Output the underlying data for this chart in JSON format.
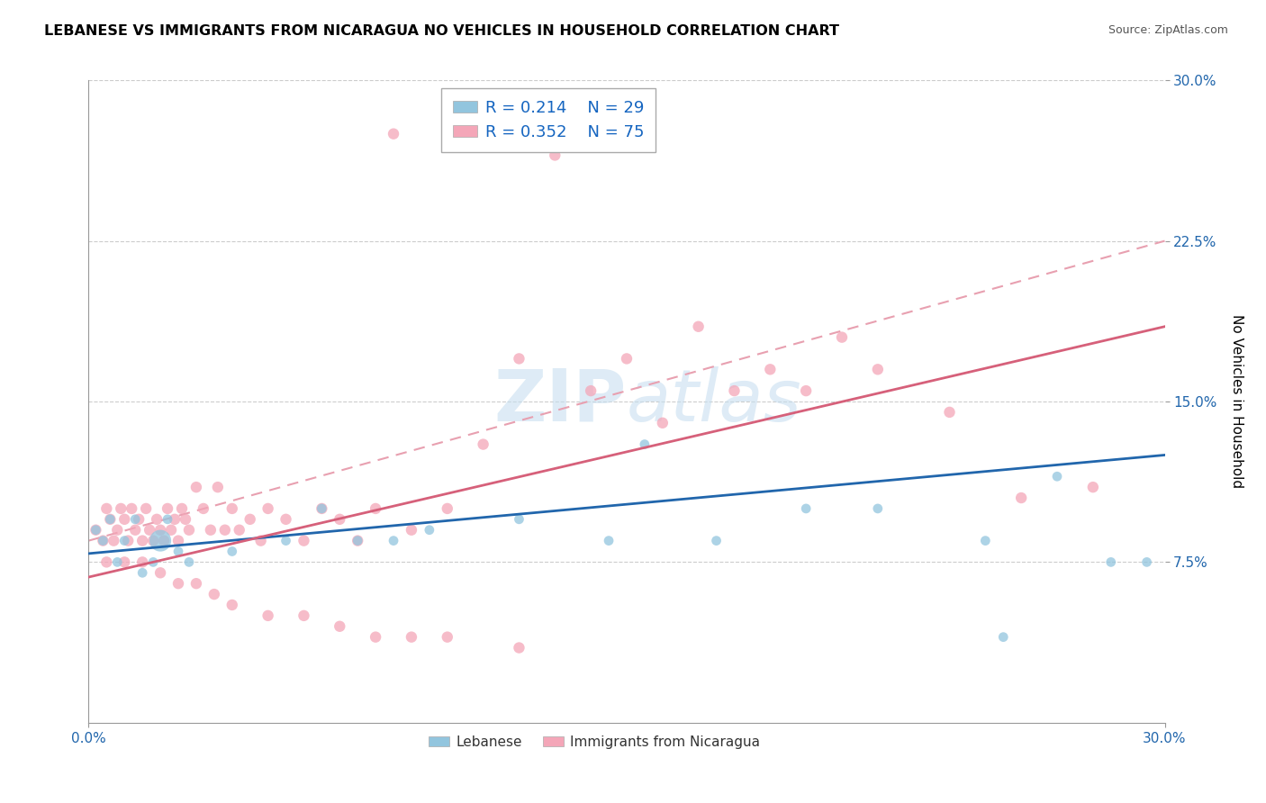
{
  "title": "LEBANESE VS IMMIGRANTS FROM NICARAGUA NO VEHICLES IN HOUSEHOLD CORRELATION CHART",
  "source": "Source: ZipAtlas.com",
  "ylabel": "No Vehicles in Household",
  "xlim": [
    0.0,
    0.3
  ],
  "ylim": [
    0.0,
    0.3
  ],
  "ytick_positions": [
    0.075,
    0.15,
    0.225,
    0.3
  ],
  "ytick_labels": [
    "7.5%",
    "15.0%",
    "22.5%",
    "30.0%"
  ],
  "xtick_positions": [
    0.0,
    0.3
  ],
  "xtick_labels": [
    "0.0%",
    "30.0%"
  ],
  "legend_r1": "R = 0.214",
  "legend_n1": "N = 29",
  "legend_r2": "R = 0.352",
  "legend_n2": "N = 75",
  "color_blue": "#92c5de",
  "color_pink": "#f4a6b8",
  "color_blue_line": "#2166ac",
  "color_pink_line": "#d6607a",
  "color_dashed": "#e8a0b0",
  "blue_x": [
    0.002,
    0.004,
    0.006,
    0.008,
    0.01,
    0.013,
    0.015,
    0.018,
    0.02,
    0.022,
    0.025,
    0.028,
    0.04,
    0.055,
    0.065,
    0.075,
    0.085,
    0.095,
    0.12,
    0.145,
    0.155,
    0.175,
    0.2,
    0.22,
    0.25,
    0.255,
    0.27,
    0.285,
    0.295
  ],
  "blue_y": [
    0.09,
    0.085,
    0.095,
    0.075,
    0.085,
    0.095,
    0.07,
    0.075,
    0.085,
    0.095,
    0.08,
    0.075,
    0.08,
    0.085,
    0.1,
    0.085,
    0.085,
    0.09,
    0.095,
    0.085,
    0.13,
    0.085,
    0.1,
    0.1,
    0.085,
    0.04,
    0.115,
    0.075,
    0.075
  ],
  "blue_size": [
    60,
    60,
    60,
    60,
    60,
    60,
    60,
    60,
    300,
    60,
    60,
    60,
    60,
    60,
    60,
    60,
    60,
    60,
    60,
    60,
    60,
    60,
    60,
    60,
    60,
    60,
    60,
    60,
    60
  ],
  "pink_x": [
    0.002,
    0.004,
    0.005,
    0.006,
    0.007,
    0.008,
    0.009,
    0.01,
    0.011,
    0.012,
    0.013,
    0.014,
    0.015,
    0.016,
    0.017,
    0.018,
    0.019,
    0.02,
    0.021,
    0.022,
    0.023,
    0.024,
    0.025,
    0.026,
    0.027,
    0.028,
    0.03,
    0.032,
    0.034,
    0.036,
    0.038,
    0.04,
    0.042,
    0.045,
    0.048,
    0.05,
    0.055,
    0.06,
    0.065,
    0.07,
    0.075,
    0.08,
    0.085,
    0.09,
    0.1,
    0.11,
    0.12,
    0.13,
    0.14,
    0.15,
    0.16,
    0.17,
    0.18,
    0.19,
    0.2,
    0.21,
    0.22,
    0.24,
    0.26,
    0.28,
    0.005,
    0.01,
    0.015,
    0.02,
    0.025,
    0.03,
    0.035,
    0.04,
    0.05,
    0.06,
    0.07,
    0.08,
    0.09,
    0.1,
    0.12
  ],
  "pink_y": [
    0.09,
    0.085,
    0.1,
    0.095,
    0.085,
    0.09,
    0.1,
    0.095,
    0.085,
    0.1,
    0.09,
    0.095,
    0.085,
    0.1,
    0.09,
    0.085,
    0.095,
    0.09,
    0.085,
    0.1,
    0.09,
    0.095,
    0.085,
    0.1,
    0.095,
    0.09,
    0.11,
    0.1,
    0.09,
    0.11,
    0.09,
    0.1,
    0.09,
    0.095,
    0.085,
    0.1,
    0.095,
    0.085,
    0.1,
    0.095,
    0.085,
    0.1,
    0.275,
    0.09,
    0.1,
    0.13,
    0.17,
    0.265,
    0.155,
    0.17,
    0.14,
    0.185,
    0.155,
    0.165,
    0.155,
    0.18,
    0.165,
    0.145,
    0.105,
    0.11,
    0.075,
    0.075,
    0.075,
    0.07,
    0.065,
    0.065,
    0.06,
    0.055,
    0.05,
    0.05,
    0.045,
    0.04,
    0.04,
    0.04,
    0.035
  ],
  "blue_line_x": [
    0.0,
    0.3
  ],
  "blue_line_y": [
    0.079,
    0.125
  ],
  "pink_line_x": [
    0.0,
    0.3
  ],
  "pink_line_y": [
    0.068,
    0.185
  ],
  "dash_line_x": [
    0.0,
    0.3
  ],
  "dash_line_y": [
    0.085,
    0.225
  ]
}
